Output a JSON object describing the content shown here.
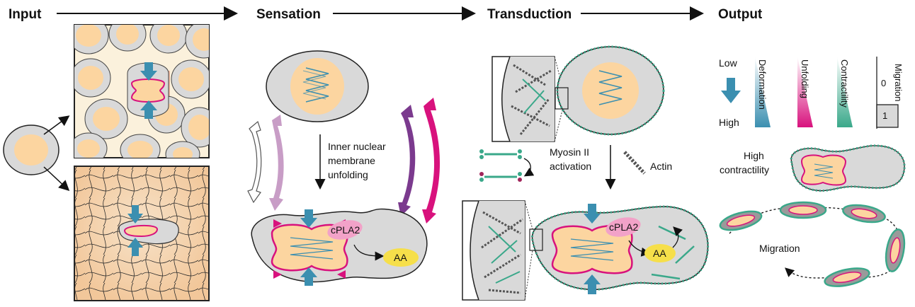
{
  "stages": {
    "input": "Input",
    "sensation": "Sensation",
    "transduction": "Transduction",
    "output": "Output"
  },
  "sensation": {
    "step_line1": "Inner nuclear",
    "step_line2": "membrane",
    "step_line3": "unfolding",
    "enzyme": "cPLA2",
    "product": "AA"
  },
  "transduction": {
    "myosin_line1": "Myosin II",
    "myosin_line2": "activation",
    "actin": "Actin",
    "enzyme": "cPLA2",
    "product": "AA"
  },
  "output": {
    "legend_low": "Low",
    "legend_high": "High",
    "deformation": "Deformation",
    "unfolding": "Unfolding",
    "contractility": "Contractility",
    "migration_title": "Migration",
    "migration_zero": "0",
    "migration_one": "1",
    "high_contractility_line1": "High",
    "high_contractility_line2": "contractility",
    "migration_label": "Migration"
  },
  "colors": {
    "nucleus": "#fcd5a0",
    "cell": "#d9d9d9",
    "membrane": "#d8127d",
    "arrow_blue": "#3b8fb0",
    "myosin": "#3aa88a",
    "purple": "#7b3a8e"
  }
}
